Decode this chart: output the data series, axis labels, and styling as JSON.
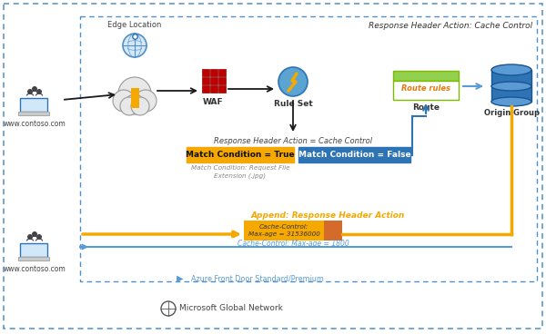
{
  "title": "Response Header Action: Cache Control",
  "bg_color": "#ffffff",
  "border_blue": "#4f90c8",
  "edge_location_text": "Edge Location",
  "www_text": "www.contoso.com",
  "waf_text": "WAF",
  "ruleset_text": "Rule Set",
  "route_text": "Route",
  "origin_group_text": "Origin Group",
  "response_header_action_text": "Response Header Action = Cache Control",
  "match_true_text": "Match Condition = True",
  "match_false_text": "Match Condition = False",
  "match_condition_desc": "Match Condition: Request File\nExtension (.jpg)",
  "append_header_title": "Append: Response Header Action",
  "cache_control_box_text": "Cache-Control:\nMax-age = 31536000",
  "cache_control_return_text": "Cache-Control: Max-age = 1800",
  "azure_fd_text": "Azure Front Door Standard/Premium",
  "ms_global_text": "Microsoft Global Network",
  "route_rules_text": "Route rules",
  "match_true_bg": "#f5a800",
  "match_false_bg": "#2e74b5",
  "orange_color": "#f5a800",
  "blue_color": "#2e74b5",
  "light_blue_color": "#5a9bd5",
  "arrow_color": "#1a1a1a",
  "gray_text_color": "#888888",
  "orange_text_color": "#f5a800",
  "route_box_green": "#92d050",
  "route_rules_text_color": "#e8790a",
  "cache_box_yellow": "#f5a800",
  "cache_box_orange": "#d46b2a",
  "cloud_color": "#e8e8e8",
  "cloud_edge": "#999999",
  "db_blue": "#2e74b5",
  "db_light": "#5a9bd5"
}
